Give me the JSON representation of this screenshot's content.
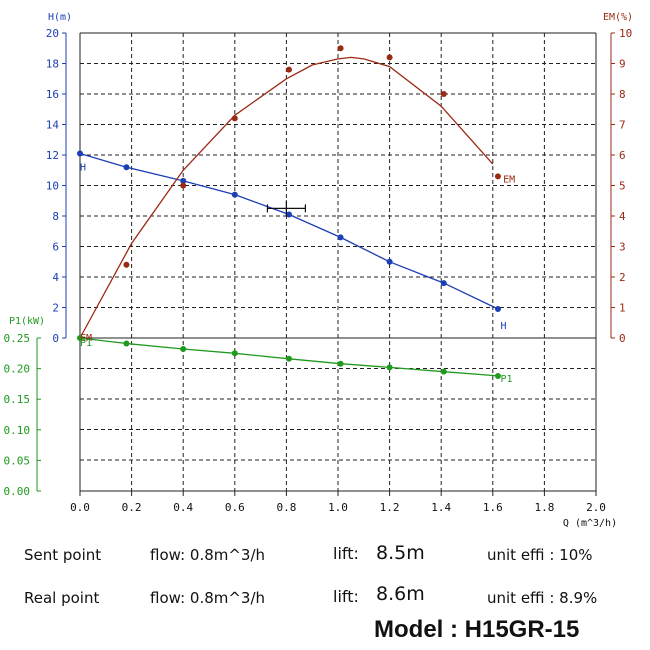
{
  "chart_data": {
    "type": "line",
    "xlabel": "Q (m^3/h)",
    "xlim": [
      0,
      2.0
    ],
    "x_ticks": [
      "0.0",
      "0.2",
      "0.4",
      "0.6",
      "0.8",
      "1.0",
      "1.2",
      "1.4",
      "1.6",
      "1.8",
      "2.0"
    ],
    "grid": true,
    "axes": {
      "H": {
        "label": "H(m)",
        "range": [
          0,
          20
        ],
        "side": "left",
        "color": "#1c3fb5",
        "ticks": [
          "0",
          "2",
          "4",
          "6",
          "8",
          "10",
          "12",
          "14",
          "16",
          "18",
          "20"
        ]
      },
      "EM": {
        "label": "EM(%)",
        "range": [
          0,
          10
        ],
        "side": "right",
        "color": "#9b2a14",
        "ticks": [
          "0",
          "1",
          "2",
          "3",
          "4",
          "5",
          "6",
          "7",
          "8",
          "9",
          "10"
        ]
      },
      "P1": {
        "label": "P1(kW)",
        "range": [
          0,
          0.25
        ],
        "side": "left-lower",
        "color": "#1f9a1f",
        "ticks": [
          "0.00",
          "0.05",
          "0.10",
          "0.15",
          "0.20",
          "0.25"
        ]
      }
    },
    "series": [
      {
        "name": "H",
        "axis": "H",
        "color": "#1c3fb5",
        "x": [
          0.0,
          0.18,
          0.4,
          0.6,
          0.81,
          1.01,
          1.2,
          1.41,
          1.62
        ],
        "y": [
          12.1,
          11.2,
          10.3,
          9.4,
          8.1,
          6.6,
          5.0,
          3.6,
          1.9
        ]
      },
      {
        "name": "EM",
        "axis": "EM",
        "color": "#9b2a14",
        "x": [
          0.18,
          0.4,
          0.6,
          0.81,
          1.01,
          1.2,
          1.41,
          1.62
        ],
        "y": [
          2.4,
          5.0,
          7.2,
          8.8,
          9.5,
          9.2,
          8.0,
          5.3
        ],
        "fit_x": [
          0.0,
          0.2,
          0.4,
          0.6,
          0.8,
          0.9,
          1.0,
          1.05,
          1.1,
          1.2,
          1.4,
          1.6
        ],
        "fit_y": [
          0.0,
          3.1,
          5.5,
          7.3,
          8.5,
          8.95,
          9.15,
          9.2,
          9.15,
          8.9,
          7.6,
          5.7
        ]
      },
      {
        "name": "P1",
        "axis": "P1",
        "color": "#1f9a1f",
        "x": [
          0.0,
          0.18,
          0.4,
          0.6,
          0.81,
          1.01,
          1.2,
          1.41,
          1.62
        ],
        "y": [
          0.25,
          0.241,
          0.232,
          0.225,
          0.216,
          0.208,
          0.202,
          0.195,
          0.188
        ]
      }
    ],
    "curve_labels": [
      {
        "text": "H",
        "series": "H",
        "x": 0.0,
        "y": 11.0
      },
      {
        "text": "H",
        "series": "H",
        "x": 1.63,
        "y": 0.6
      },
      {
        "text": "EM",
        "series": "EM",
        "x": 1.64,
        "y": 5.1
      },
      {
        "text": "EM",
        "series": "EM",
        "x": 0.0,
        "y": -0.1
      },
      {
        "text": "P1",
        "series": "P1",
        "x": 0.0,
        "y": 0.237
      },
      {
        "text": "P1",
        "series": "P1",
        "x": 1.63,
        "y": 0.178
      }
    ],
    "operating_point": {
      "x": 0.8,
      "y": 8.5,
      "axis": "H"
    }
  },
  "info": {
    "sent": {
      "label": "Sent point",
      "flow": "flow: 0.8m^3/h",
      "lift_label": "lift:",
      "lift_value": "8.5m",
      "effi": "unit effi : 10%"
    },
    "real": {
      "label": "Real point",
      "flow": "flow: 0.8m^3/h",
      "lift_label": "lift:",
      "lift_value": "8.6m",
      "effi": "unit effi : 8.9%"
    },
    "model_label": "Model : ",
    "model_value": "H15GR-15"
  }
}
